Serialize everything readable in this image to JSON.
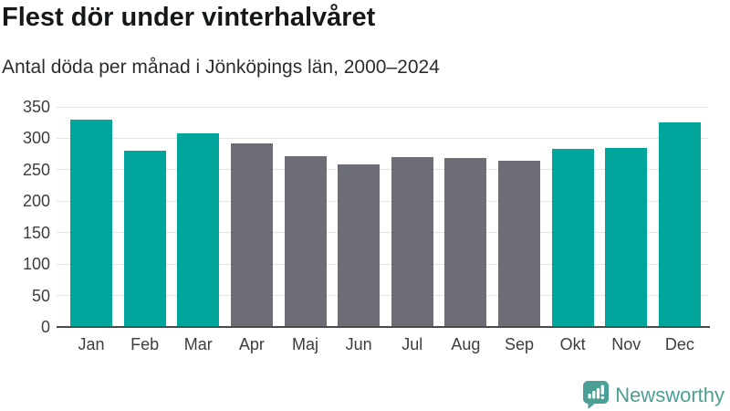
{
  "header": {
    "title": "Flest dör under vinterhalvåret",
    "subtitle": "Antal döda per månad i Jönköpings län, 2000–2024"
  },
  "chart_data": {
    "type": "bar",
    "categories": [
      "Jan",
      "Feb",
      "Mar",
      "Apr",
      "Maj",
      "Jun",
      "Jul",
      "Aug",
      "Sep",
      "Okt",
      "Nov",
      "Dec"
    ],
    "values": [
      330,
      281,
      308,
      292,
      272,
      258,
      270,
      268,
      264,
      283,
      285,
      325
    ],
    "bar_colors": [
      "#00a69c",
      "#00a69c",
      "#00a69c",
      "#6d6d76",
      "#6d6d76",
      "#6d6d76",
      "#6d6d76",
      "#6d6d76",
      "#6d6d76",
      "#00a69c",
      "#00a69c",
      "#00a69c"
    ],
    "title": "Flest dör under vinterhalvåret",
    "subtitle": "Antal döda per månad i Jönköpings län, 2000–2024",
    "xlabel": "",
    "ylabel": "",
    "yticks": [
      0,
      50,
      100,
      150,
      200,
      250,
      300,
      350
    ],
    "ylim": [
      0,
      350
    ],
    "grid": true,
    "legend": "none"
  },
  "colors": {
    "winter_bar": "#00a69c",
    "summer_bar": "#6d6d76",
    "gridline": "#e3e3e3",
    "axis_line": "#4b4b4b",
    "tick_text": "#3d3d3d",
    "logo": "#4b9e94"
  },
  "branding": {
    "logo_text": "Newsworthy"
  }
}
